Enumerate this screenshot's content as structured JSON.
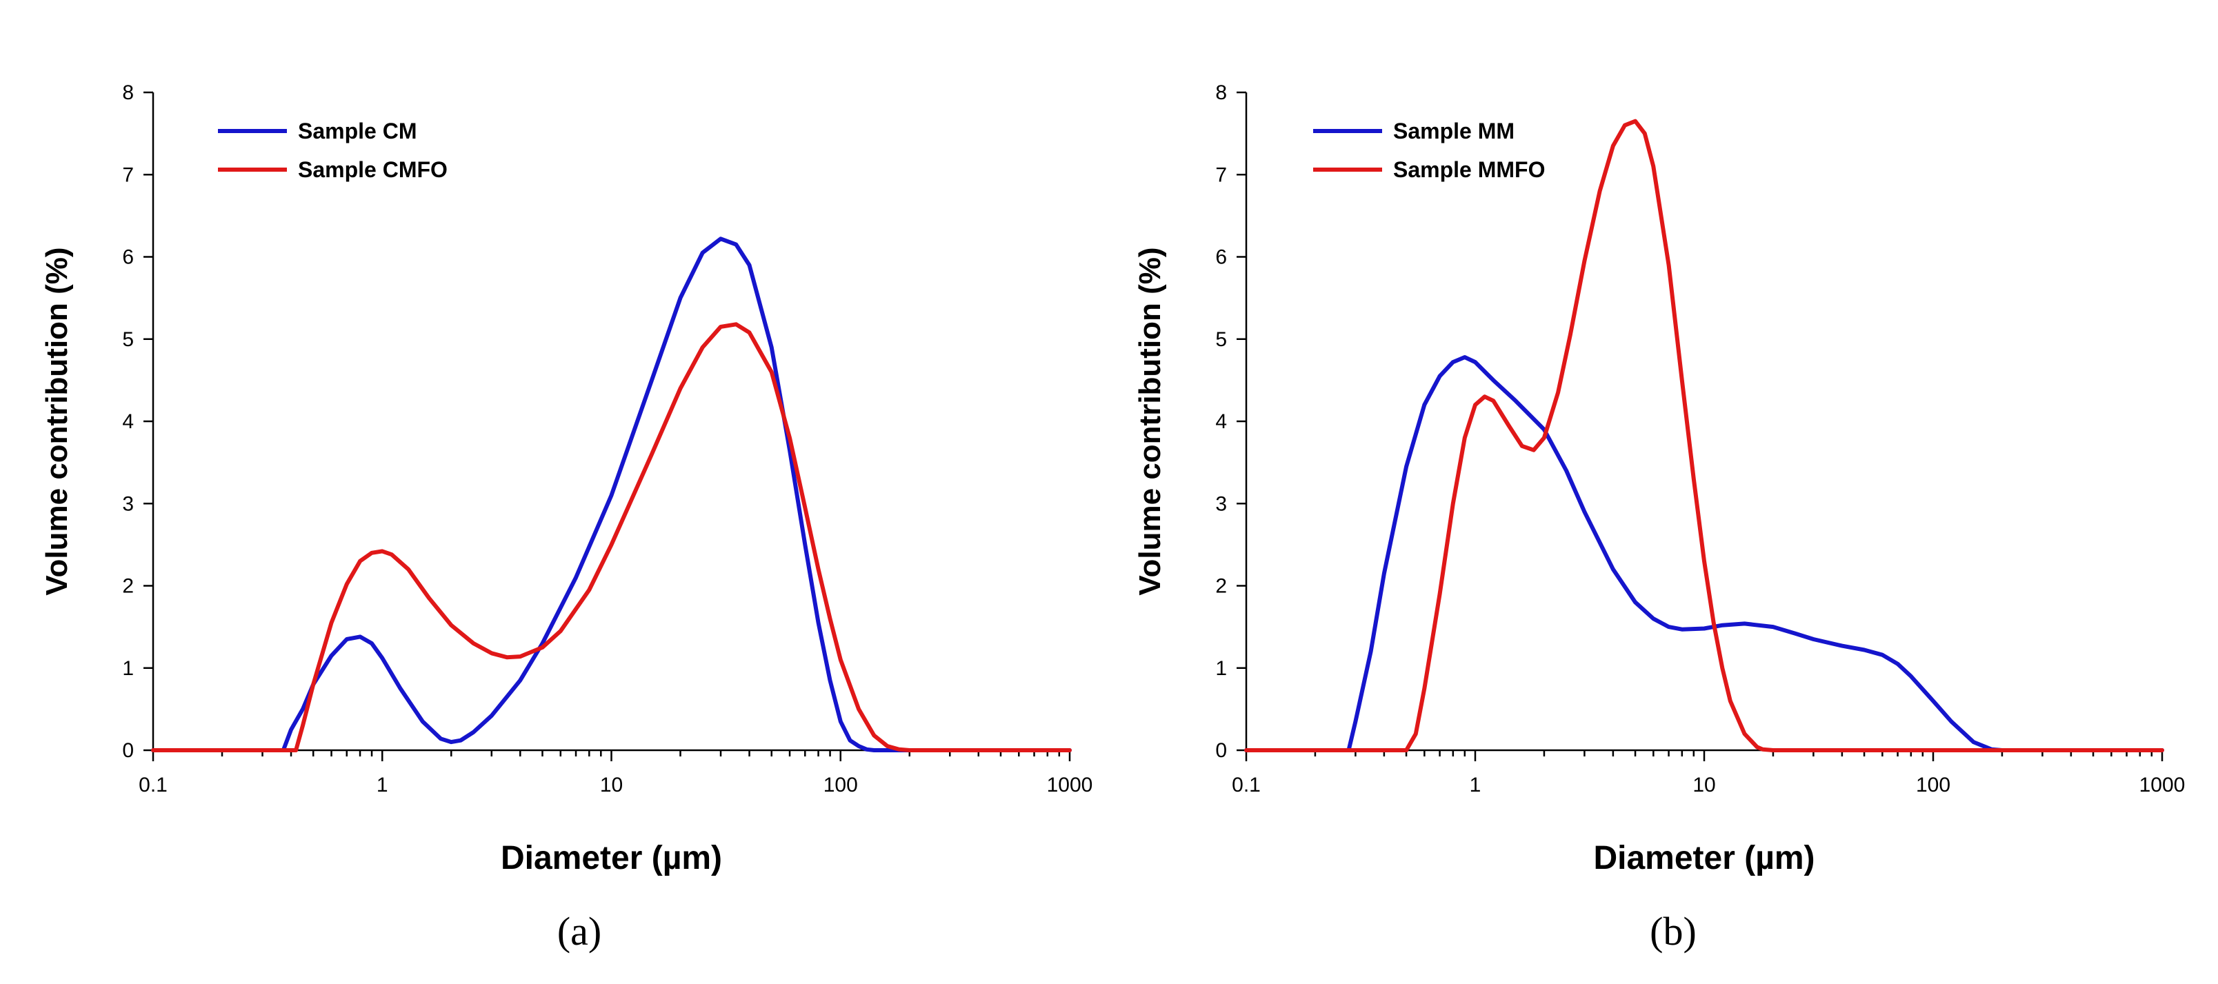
{
  "chart_data": [
    {
      "type": "line",
      "panel_label": "(a)",
      "xlabel": "Diameter (µm)",
      "ylabel": "Volume contribution (%)",
      "xscale": "log",
      "xlim": [
        0.1,
        1000
      ],
      "ylim": [
        0,
        8
      ],
      "xticks": [
        0.1,
        1,
        10,
        100,
        1000
      ],
      "xtick_labels": [
        "0.1",
        "1",
        "10",
        "100",
        "1000"
      ],
      "yticks": [
        0,
        1,
        2,
        3,
        4,
        5,
        6,
        7,
        8
      ],
      "ytick_labels": [
        "0",
        "1",
        "2",
        "3",
        "4",
        "5",
        "6",
        "7",
        "8"
      ],
      "legend_position": "top-left",
      "series": [
        {
          "name": "Sample CM",
          "color": "#1515cc",
          "x": [
            0.1,
            0.3,
            0.37,
            0.4,
            0.45,
            0.5,
            0.6,
            0.7,
            0.8,
            0.9,
            1.0,
            1.2,
            1.5,
            1.8,
            2.0,
            2.2,
            2.5,
            3,
            4,
            5,
            7,
            10,
            15,
            20,
            25,
            30,
            35,
            40,
            50,
            60,
            70,
            80,
            90,
            100,
            110,
            120,
            130,
            140,
            200,
            1000
          ],
          "y": [
            0,
            0,
            0,
            0.25,
            0.5,
            0.8,
            1.15,
            1.35,
            1.38,
            1.3,
            1.12,
            0.75,
            0.35,
            0.14,
            0.1,
            0.12,
            0.22,
            0.42,
            0.85,
            1.3,
            2.1,
            3.1,
            4.5,
            5.5,
            6.05,
            6.22,
            6.15,
            5.9,
            4.9,
            3.65,
            2.5,
            1.55,
            0.85,
            0.35,
            0.12,
            0.05,
            0.01,
            0,
            0,
            0
          ]
        },
        {
          "name": "Sample CMFO",
          "color": "#e01818",
          "x": [
            0.1,
            0.3,
            0.42,
            0.45,
            0.5,
            0.6,
            0.7,
            0.8,
            0.9,
            1.0,
            1.1,
            1.3,
            1.6,
            2.0,
            2.5,
            3,
            3.5,
            4,
            5,
            6,
            8,
            10,
            15,
            20,
            25,
            30,
            35,
            40,
            50,
            60,
            70,
            80,
            90,
            100,
            120,
            140,
            160,
            180,
            200,
            1000
          ],
          "y": [
            0,
            0,
            0,
            0.3,
            0.8,
            1.55,
            2.02,
            2.3,
            2.4,
            2.42,
            2.38,
            2.2,
            1.85,
            1.52,
            1.3,
            1.18,
            1.13,
            1.14,
            1.25,
            1.45,
            1.95,
            2.5,
            3.6,
            4.4,
            4.9,
            5.15,
            5.18,
            5.08,
            4.6,
            3.8,
            2.95,
            2.2,
            1.6,
            1.1,
            0.5,
            0.18,
            0.05,
            0.01,
            0,
            0
          ]
        }
      ]
    },
    {
      "type": "line",
      "panel_label": "(b)",
      "xlabel": "Diameter (µm)",
      "ylabel": "Volume contribution (%)",
      "xscale": "log",
      "xlim": [
        0.1,
        1000
      ],
      "ylim": [
        0,
        8
      ],
      "xticks": [
        0.1,
        1,
        10,
        100,
        1000
      ],
      "xtick_labels": [
        "0.1",
        "1",
        "10",
        "100",
        "1000"
      ],
      "yticks": [
        0,
        1,
        2,
        3,
        4,
        5,
        6,
        7,
        8
      ],
      "ytick_labels": [
        "0",
        "1",
        "2",
        "3",
        "4",
        "5",
        "6",
        "7",
        "8"
      ],
      "legend_position": "top-left",
      "series": [
        {
          "name": "Sample MM",
          "color": "#1515cc",
          "x": [
            0.1,
            0.25,
            0.28,
            0.3,
            0.35,
            0.4,
            0.5,
            0.6,
            0.7,
            0.8,
            0.9,
            1.0,
            1.2,
            1.5,
            2.0,
            2.5,
            3,
            4,
            5,
            6,
            7,
            8,
            10,
            12,
            15,
            20,
            25,
            30,
            40,
            50,
            60,
            70,
            80,
            100,
            120,
            150,
            180,
            200,
            1000
          ],
          "y": [
            0,
            0,
            0,
            0.35,
            1.2,
            2.15,
            3.45,
            4.2,
            4.55,
            4.72,
            4.78,
            4.72,
            4.5,
            4.25,
            3.9,
            3.4,
            2.9,
            2.2,
            1.8,
            1.6,
            1.5,
            1.47,
            1.48,
            1.52,
            1.54,
            1.5,
            1.42,
            1.35,
            1.27,
            1.22,
            1.16,
            1.05,
            0.9,
            0.6,
            0.35,
            0.1,
            0.01,
            0,
            0
          ]
        },
        {
          "name": "Sample MMFO",
          "color": "#e01818",
          "x": [
            0.1,
            0.5,
            0.55,
            0.6,
            0.7,
            0.8,
            0.9,
            1.0,
            1.1,
            1.2,
            1.4,
            1.6,
            1.8,
            2.0,
            2.3,
            2.6,
            3,
            3.5,
            4,
            4.5,
            5,
            5.5,
            6,
            7,
            8,
            9,
            10,
            11,
            12,
            13,
            15,
            17,
            18,
            20,
            1000
          ],
          "y": [
            0,
            0,
            0.2,
            0.75,
            1.9,
            3.0,
            3.8,
            4.2,
            4.3,
            4.25,
            3.95,
            3.7,
            3.65,
            3.8,
            4.35,
            5.05,
            5.95,
            6.8,
            7.35,
            7.6,
            7.65,
            7.5,
            7.1,
            5.9,
            4.5,
            3.3,
            2.3,
            1.55,
            1.0,
            0.6,
            0.2,
            0.04,
            0.01,
            0,
            0
          ]
        }
      ]
    }
  ]
}
